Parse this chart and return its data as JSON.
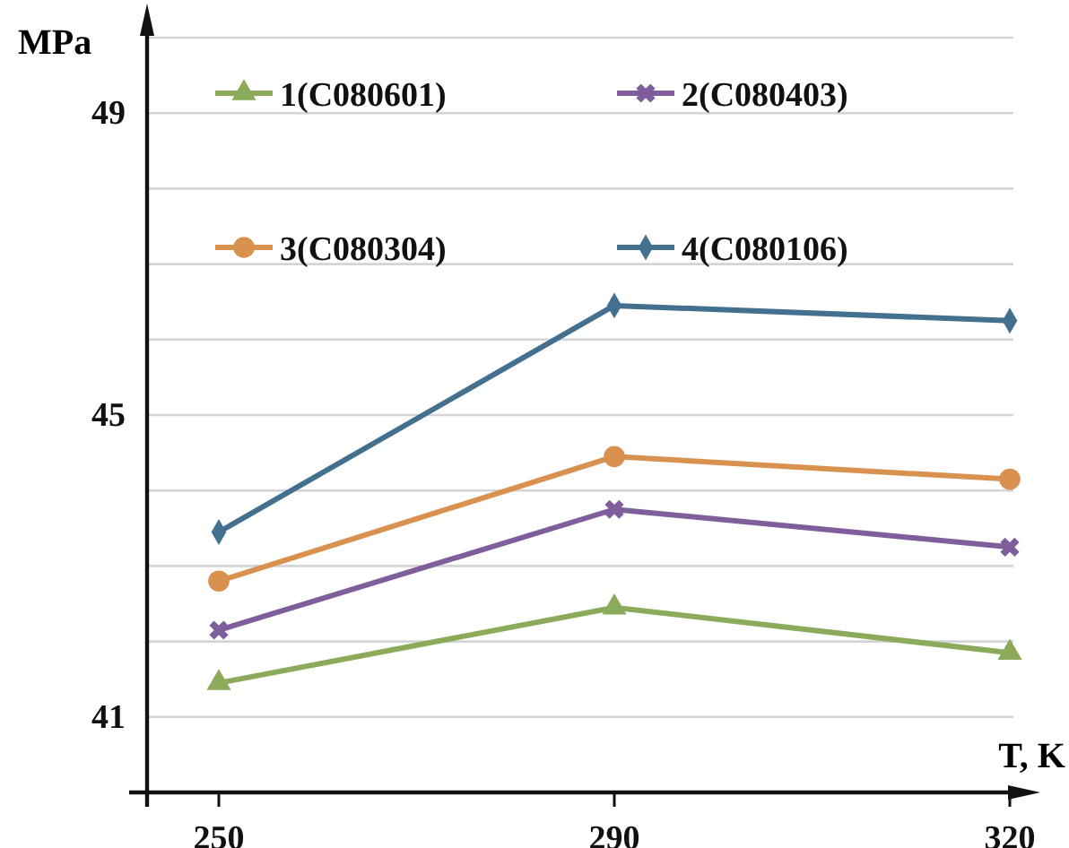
{
  "chart_data": {
    "type": "line",
    "ylabel": "MPa",
    "xlabel": "T, K",
    "categories": [
      "250",
      "290",
      "320"
    ],
    "series": [
      {
        "name": "1(C080601)",
        "color": "#8bab5b",
        "marker": "triangle",
        "values": [
          41.45,
          42.45,
          41.85
        ]
      },
      {
        "name": "2(C080403)",
        "color": "#7e5f9b",
        "marker": "cross",
        "values": [
          42.15,
          43.75,
          43.25
        ]
      },
      {
        "name": "3(C080304)",
        "color": "#d9914f",
        "marker": "circle",
        "values": [
          42.8,
          44.45,
          44.15
        ]
      },
      {
        "name": "4(C080106)",
        "color": "#44708f",
        "marker": "diamond",
        "values": [
          43.45,
          46.45,
          46.25
        ]
      }
    ],
    "ylim": [
      40,
      50
    ],
    "yticks": [
      {
        "value": 41,
        "label": "41"
      },
      {
        "value": 42,
        "label": null
      },
      {
        "value": 43,
        "label": null
      },
      {
        "value": 44,
        "label": null
      },
      {
        "value": 45,
        "label": "45"
      },
      {
        "value": 46,
        "label": null
      },
      {
        "value": 47,
        "label": null
      },
      {
        "value": 48,
        "label": null
      },
      {
        "value": 49,
        "label": "49"
      },
      {
        "value": 50,
        "label": null
      }
    ],
    "grid": "y",
    "legend": "top"
  }
}
